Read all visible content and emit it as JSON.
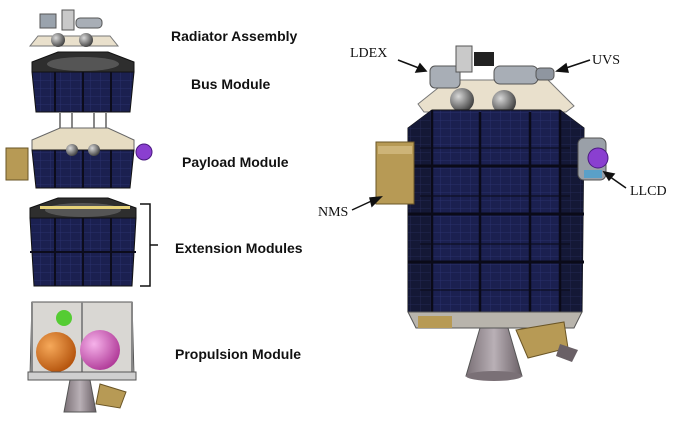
{
  "modules": {
    "radiator": "Radiator Assembly",
    "bus": "Bus Module",
    "payload": "Payload Module",
    "extension": "Extension Modules",
    "propulsion": "Propulsion Module"
  },
  "callouts": {
    "ldex": "LDEX",
    "uvs": "UVS",
    "nms": "NMS",
    "llcd": "LLCD"
  },
  "colors": {
    "solar_panel": "#1a1f4e",
    "frame": "#3a3a3a",
    "gold_foil": "#b79a55",
    "nozzle": "#9a8f95",
    "tank_orange": "#e07a1a",
    "tank_pink": "#e070c8",
    "tank_green": "#55cc33",
    "llcd_purple": "#8a3fd0"
  }
}
